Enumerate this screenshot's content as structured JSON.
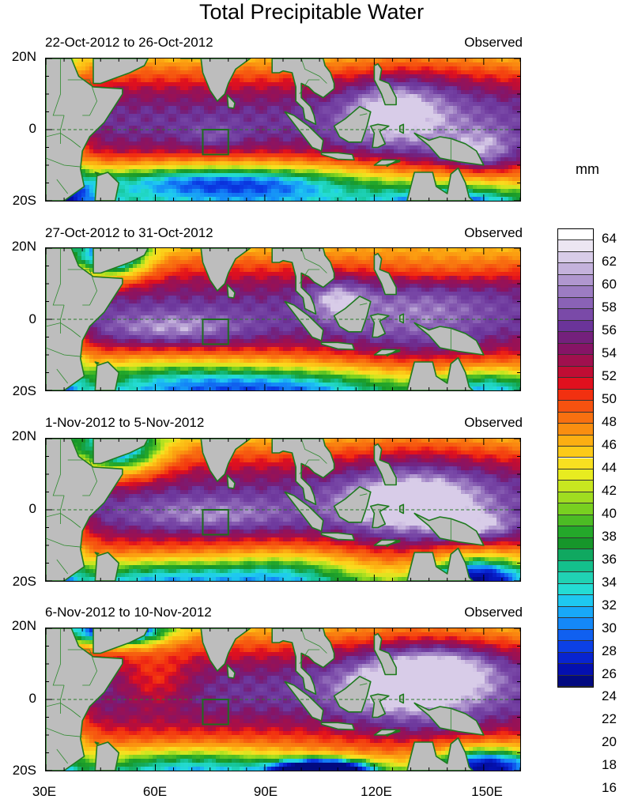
{
  "title": "Total Precipitable Water",
  "panels": [
    {
      "date_range": "22-Oct-2012 to 26-Oct-2012",
      "status": "Observed",
      "lat_top": "20N",
      "lat_mid": "0",
      "lat_bottom": "20S"
    },
    {
      "date_range": "27-Oct-2012 to 31-Oct-2012",
      "status": "Observed",
      "lat_top": "20N",
      "lat_mid": "0",
      "lat_bottom": "20S"
    },
    {
      "date_range": "1-Nov-2012 to 5-Nov-2012",
      "status": "Observed",
      "lat_top": "20N",
      "lat_mid": "0",
      "lat_bottom": "20S"
    },
    {
      "date_range": "6-Nov-2012 to 10-Nov-2012",
      "status": "Observed",
      "lat_top": "20N",
      "lat_mid": "0",
      "lat_bottom": "20S"
    }
  ],
  "longitude_labels": [
    "30E",
    "60E",
    "90E",
    "120E",
    "150E"
  ],
  "colorbar": {
    "unit": "mm",
    "labels": [
      "64",
      "62",
      "60",
      "58",
      "56",
      "54",
      "52",
      "50",
      "48",
      "46",
      "44",
      "42",
      "40",
      "38",
      "36",
      "34",
      "32",
      "30",
      "28",
      "26",
      "24",
      "22",
      "20",
      "18",
      "16"
    ],
    "colors": [
      "#ffffff",
      "#ece6f2",
      "#d8cce8",
      "#c4b2dc",
      "#b097cf",
      "#9c7cc2",
      "#8a62b6",
      "#7a4aa8",
      "#6b349a",
      "#74207c",
      "#861466",
      "#a0104e",
      "#c00d34",
      "#e0101e",
      "#f23010",
      "#f55210",
      "#f87010",
      "#fa8e10",
      "#fcae12",
      "#fcca18",
      "#f8e020",
      "#e8ec20",
      "#c8e620",
      "#a0dc20",
      "#78d020",
      "#4cbc24",
      "#24a82a",
      "#16962a",
      "#10a860",
      "#14c08c",
      "#20d2b4",
      "#24dcd4",
      "#1ec8f0",
      "#18a8f8",
      "#1488f8",
      "#1060f0",
      "#0c40e6",
      "#0824d0",
      "#0410b0",
      "#020a80"
    ]
  },
  "analysis_box": {
    "lon_min": 73,
    "lon_max": 80,
    "lat_min": -7,
    "lat_max": 0
  }
}
